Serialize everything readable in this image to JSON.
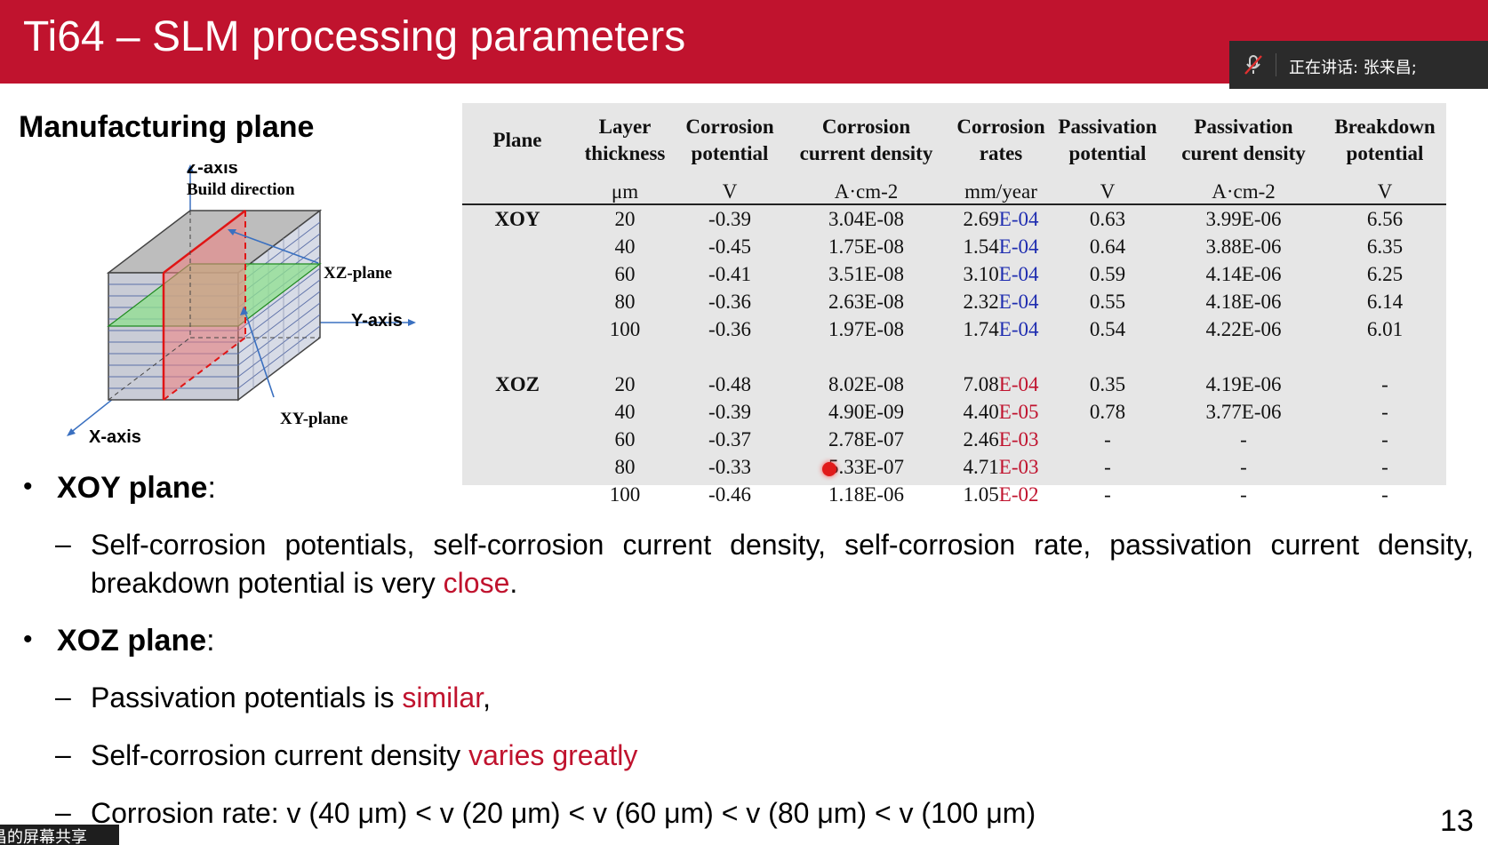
{
  "slide": {
    "title": "Ti64 – SLM processing parameters",
    "page_number": "13",
    "header_color": "#c0132e"
  },
  "meeting": {
    "speaking_label": "正在讲话: 张来昌;",
    "mic_icon": "mic-muted-icon",
    "share_tab_label": "昌的屏幕共享"
  },
  "diagram": {
    "heading": "Manufacturing plane",
    "z_axis": "Z-axis",
    "build_direction": "Build direction",
    "xz_plane": "XZ-plane",
    "y_axis": "Y-axis",
    "xy_plane": "XY-plane",
    "x_axis": "X-axis"
  },
  "table": {
    "headers": [
      [
        "Plane"
      ],
      [
        "Layer",
        "thickness"
      ],
      [
        "Corrosion",
        "potential"
      ],
      [
        "Corrosion",
        "current density"
      ],
      [
        "Corrosion",
        "rates"
      ],
      [
        "Passivation",
        "potential"
      ],
      [
        "Passivation",
        "curent density"
      ],
      [
        "Breakdown",
        "potential"
      ]
    ],
    "units": [
      "",
      "μm",
      "V",
      "A·cm-2",
      "mm/year",
      "V",
      "A·cm-2",
      "V"
    ],
    "groups": [
      {
        "plane": "XOY",
        "rows": [
          {
            "layer": "20",
            "corr_pot": "-0.39",
            "corr_cd": "3.04E-08",
            "rate_m": "2.69",
            "rate_e": "E-04",
            "pass_pot": "0.63",
            "pass_cd": "3.99E-06",
            "break": "6.56"
          },
          {
            "layer": "40",
            "corr_pot": "-0.45",
            "corr_cd": "1.75E-08",
            "rate_m": "1.54",
            "rate_e": "E-04",
            "pass_pot": "0.64",
            "pass_cd": "3.88E-06",
            "break": "6.35"
          },
          {
            "layer": "60",
            "corr_pot": "-0.41",
            "corr_cd": "3.51E-08",
            "rate_m": "3.10",
            "rate_e": "E-04",
            "pass_pot": "0.59",
            "pass_cd": "4.14E-06",
            "break": "6.25"
          },
          {
            "layer": "80",
            "corr_pot": "-0.36",
            "corr_cd": "2.63E-08",
            "rate_m": "2.32",
            "rate_e": "E-04",
            "pass_pot": "0.55",
            "pass_cd": "4.18E-06",
            "break": "6.14"
          },
          {
            "layer": "100",
            "corr_pot": "-0.36",
            "corr_cd": "1.97E-08",
            "rate_m": "1.74",
            "rate_e": "E-04",
            "pass_pot": "0.54",
            "pass_cd": "4.22E-06",
            "break": "6.01"
          }
        ]
      },
      {
        "plane": "XOZ",
        "rows": [
          {
            "layer": "20",
            "corr_pot": "-0.48",
            "corr_cd": "8.02E-08",
            "rate_m": "7.08",
            "rate_e": "E-04",
            "pass_pot": "0.35",
            "pass_cd": "4.19E-06",
            "break": "-"
          },
          {
            "layer": "40",
            "corr_pot": "-0.39",
            "corr_cd": "4.90E-09",
            "rate_m": "4.40",
            "rate_e": "E-05",
            "pass_pot": "0.78",
            "pass_cd": "3.77E-06",
            "break": "-"
          },
          {
            "layer": "60",
            "corr_pot": "-0.37",
            "corr_cd": "2.78E-07",
            "rate_m": "2.46",
            "rate_e": "E-03",
            "pass_pot": "-",
            "pass_cd": "-",
            "break": "-"
          },
          {
            "layer": "80",
            "corr_pot": "-0.33",
            "corr_cd": "5.33E-07",
            "rate_m": "4.71",
            "rate_e": "E-03",
            "pass_pot": "-",
            "pass_cd": "-",
            "break": "-"
          },
          {
            "layer": "100",
            "corr_pot": "-0.46",
            "corr_cd": "1.18E-06",
            "rate_m": "1.05",
            "rate_e": "E-02",
            "pass_pot": "-",
            "pass_cd": "-",
            "break": "-"
          }
        ]
      }
    ],
    "exponent_colors": {
      "XOY": "#1f2db0",
      "XOZ": "#c0132e"
    }
  },
  "bullets": {
    "xoy_head": "XOY plane",
    "xoy_colon": ":",
    "xoy_text": "Self-corrosion potentials, self-corrosion current density, self-corrosion rate, passivation current density, breakdown potential is very ",
    "xoy_highlight": "close",
    "xoy_end": ".",
    "xoz_head": "XOZ plane",
    "xoz_colon": ":",
    "xoz_1_text": "Passivation potentials is ",
    "xoz_1_highlight": "similar",
    "xoz_1_end": ",",
    "xoz_2_text": "Self-corrosion current density ",
    "xoz_2_highlight": "varies greatly",
    "xoz_3_text": "Corrosion rate: v (40 μm) < v (20 μm) < v (60 μm) < v (80 μm) < v (100 μm)",
    "bullet_char": "•",
    "dash_char": "–",
    "highlight_color": "#c0132e"
  }
}
